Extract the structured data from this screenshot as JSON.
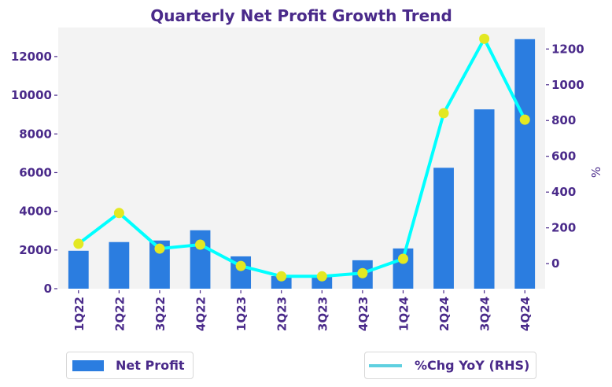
{
  "chart_data": {
    "type": "bar+line",
    "title": "Quarterly Net Profit Growth Trend",
    "categories": [
      "1Q22",
      "2Q22",
      "3Q22",
      "4Q22",
      "1Q23",
      "2Q23",
      "3Q23",
      "4Q23",
      "1Q24",
      "2Q24",
      "3Q24",
      "4Q24"
    ],
    "series": [
      {
        "name": "Net Profit",
        "type": "bar",
        "axis": "left",
        "color": "#2b7de0",
        "values": [
          1960,
          2410,
          2490,
          3020,
          1670,
          650,
          650,
          1470,
          2080,
          6250,
          9270,
          12900
        ]
      },
      {
        "name": "%Chg YoY (RHS)",
        "type": "line",
        "axis": "right",
        "color": "#00ffff",
        "legend_color": "#5fd0e0",
        "marker_color": "#e3e822",
        "values": [
          111,
          283,
          84,
          106,
          -13,
          -71,
          -71,
          -53,
          27,
          841,
          1257,
          805
        ]
      }
    ],
    "left_axis": {
      "label": "",
      "ylim": [
        0,
        13500
      ],
      "ticks": [
        0,
        2000,
        4000,
        6000,
        8000,
        10000,
        12000
      ]
    },
    "right_axis": {
      "label": "%",
      "ylim": [
        -140,
        1320
      ],
      "ticks": [
        0,
        200,
        400,
        600,
        800,
        1000,
        1200
      ]
    },
    "xlabel": "",
    "grid": false,
    "plot_background": "#f3f3f3",
    "text_color": "#4a2a8a",
    "legend": {
      "placement": "bottom",
      "items": [
        {
          "label": "Net Profit",
          "kind": "bar",
          "placement": "bottom-left"
        },
        {
          "label": "%Chg YoY (RHS)",
          "kind": "line",
          "placement": "bottom-right"
        }
      ]
    }
  }
}
